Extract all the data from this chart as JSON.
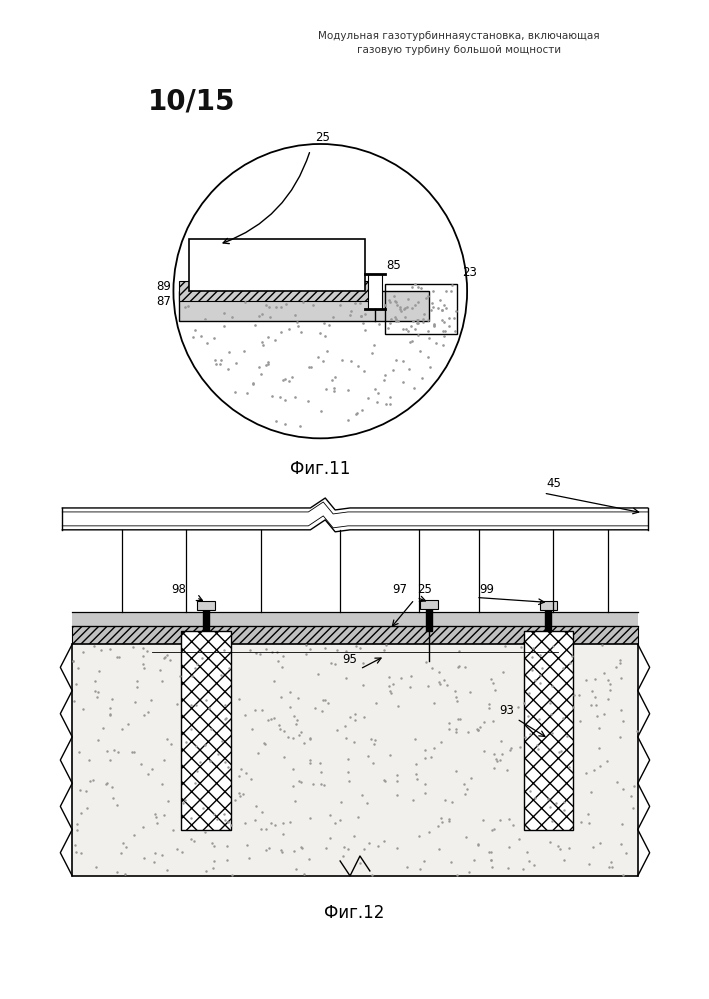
{
  "title_line1": "Модульная газотурбиннаяустановка, включающая",
  "title_line2": "газовую турбину большой мощности",
  "page_label": "10/15",
  "fig11_label": "Фиг.11",
  "fig12_label": "Фиг.12",
  "bg_color": "#ffffff"
}
